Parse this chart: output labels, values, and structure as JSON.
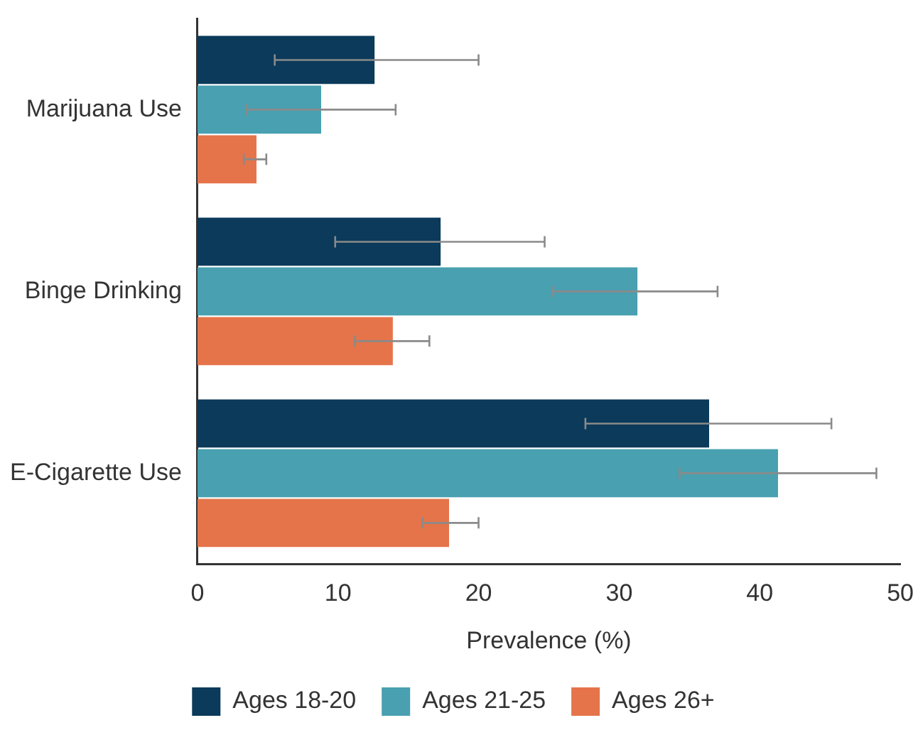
{
  "chart_data": {
    "type": "bar",
    "orientation": "horizontal",
    "xlabel": "Prevalence (%)",
    "categories": [
      "Marijuana Use",
      "Binge Drinking",
      "E-Cigarette Use"
    ],
    "series": [
      {
        "name": "Ages 18-20",
        "color": "#0b3a5a",
        "values": [
          12.6,
          17.3,
          36.4
        ],
        "errors": [
          [
            5.5,
            20.0
          ],
          [
            9.8,
            24.7
          ],
          [
            27.6,
            45.1
          ]
        ]
      },
      {
        "name": "Ages 21-25",
        "color": "#48a0b0",
        "values": [
          8.8,
          31.3,
          41.3
        ],
        "errors": [
          [
            3.5,
            14.1
          ],
          [
            25.3,
            37.0
          ],
          [
            34.3,
            48.3
          ]
        ]
      },
      {
        "name": "Ages 26+",
        "color": "#e5744a",
        "values": [
          4.2,
          13.9,
          17.9
        ],
        "errors": [
          [
            3.3,
            4.9
          ],
          [
            11.2,
            16.5
          ],
          [
            16.0,
            20.0
          ]
        ]
      }
    ],
    "xlim": [
      0,
      50
    ],
    "xticks": [
      0,
      10,
      20,
      30,
      40,
      50
    ],
    "grid": false,
    "legend": "bottom"
  }
}
